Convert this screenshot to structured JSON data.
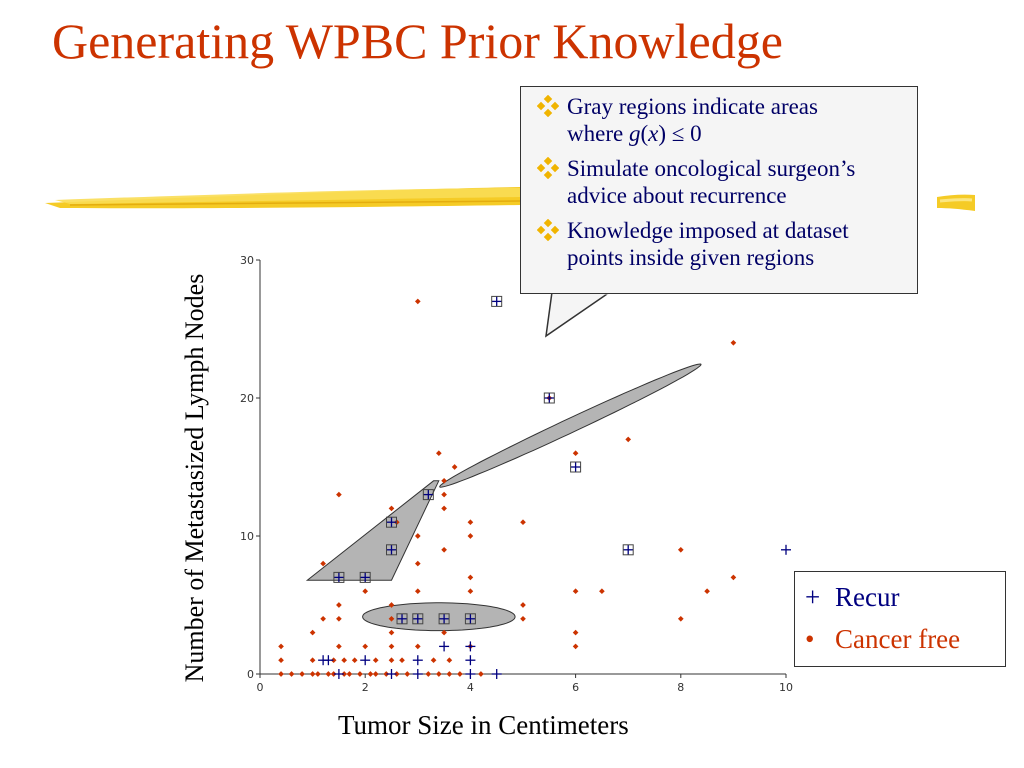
{
  "title": "Generating WPBC Prior Knowledge",
  "callout": {
    "bullets": [
      {
        "line1": "Gray regions indicate areas",
        "line2_prefix": "where ",
        "math_g": "g",
        "math_open": "(",
        "math_x": "x",
        "math_close": ")",
        "math_rel": " ≤ 0"
      },
      {
        "line1": "Simulate oncological surgeon’s",
        "line2": "advice about recurrence"
      },
      {
        "line1": "Knowledge imposed at dataset",
        "line2": "points inside given regions"
      }
    ]
  },
  "legend": {
    "recur_symbol": "+",
    "recur_label": "Recur",
    "free_symbol": "•",
    "free_label": "Cancer free"
  },
  "colors": {
    "title": "#cc3300",
    "recur": "#000080",
    "cancer_free": "#cc3300",
    "region_fill": "#b4b4b4",
    "bullet_icon": "#f0b400"
  },
  "chart_data": {
    "type": "scatter",
    "title": "",
    "xlabel": "Tumor Size in Centimeters",
    "ylabel": "Number of Metastasized Lymph Nodes",
    "xlim": [
      0,
      10
    ],
    "ylim": [
      0,
      30
    ],
    "x_ticks": [
      0,
      2,
      4,
      6,
      8,
      10
    ],
    "y_ticks": [
      0,
      10,
      20,
      30
    ],
    "grid": false,
    "legend_position": "lower-right-outside",
    "series": [
      {
        "name": "Recur",
        "points": [
          [
            1.2,
            1
          ],
          [
            2.0,
            1
          ],
          [
            3.0,
            1
          ],
          [
            3.5,
            2
          ],
          [
            4.0,
            1
          ],
          [
            4.0,
            2
          ],
          [
            4.5,
            0
          ],
          [
            1.5,
            0
          ],
          [
            2.5,
            0
          ],
          [
            3.0,
            0
          ],
          [
            4.0,
            0
          ],
          [
            1.3,
            1
          ],
          [
            10,
            9
          ],
          [
            2.5,
            11
          ],
          [
            2.5,
            9
          ],
          [
            3.2,
            13
          ],
          [
            1.5,
            7
          ],
          [
            2.0,
            7
          ],
          [
            2.7,
            4
          ],
          [
            3.0,
            4
          ],
          [
            3.5,
            4
          ],
          [
            4.0,
            4
          ],
          [
            4.5,
            27
          ],
          [
            5.5,
            20
          ],
          [
            6.0,
            15
          ],
          [
            7.0,
            9
          ]
        ]
      },
      {
        "name": "Cancer free",
        "points": [
          [
            0.4,
            0
          ],
          [
            0.6,
            0
          ],
          [
            0.8,
            0
          ],
          [
            1.0,
            0
          ],
          [
            1.1,
            0
          ],
          [
            1.3,
            0
          ],
          [
            1.4,
            0
          ],
          [
            1.6,
            0
          ],
          [
            1.7,
            0
          ],
          [
            1.9,
            0
          ],
          [
            2.1,
            0
          ],
          [
            2.2,
            0
          ],
          [
            2.4,
            0
          ],
          [
            2.6,
            0
          ],
          [
            2.8,
            0
          ],
          [
            3.2,
            0
          ],
          [
            3.4,
            0
          ],
          [
            3.6,
            0
          ],
          [
            3.8,
            0
          ],
          [
            4.2,
            0
          ],
          [
            0.4,
            1
          ],
          [
            1.0,
            1
          ],
          [
            1.4,
            1
          ],
          [
            1.6,
            1
          ],
          [
            1.8,
            1
          ],
          [
            2.2,
            1
          ],
          [
            2.5,
            1
          ],
          [
            2.7,
            1
          ],
          [
            3.3,
            1
          ],
          [
            3.6,
            1
          ],
          [
            0.4,
            2
          ],
          [
            1.5,
            2
          ],
          [
            2.0,
            2
          ],
          [
            2.5,
            2
          ],
          [
            3.0,
            2
          ],
          [
            4.0,
            2
          ],
          [
            6.0,
            2
          ],
          [
            1.0,
            3
          ],
          [
            2.5,
            3
          ],
          [
            3.5,
            3
          ],
          [
            6.0,
            3
          ],
          [
            1.2,
            4
          ],
          [
            1.5,
            4
          ],
          [
            2.5,
            4
          ],
          [
            8.0,
            4
          ],
          [
            1.5,
            5
          ],
          [
            2.5,
            5
          ],
          [
            5.0,
            5
          ],
          [
            2.0,
            6
          ],
          [
            3.0,
            6
          ],
          [
            4.0,
            6
          ],
          [
            5.0,
            4
          ],
          [
            6.0,
            6
          ],
          [
            6.5,
            6
          ],
          [
            8.5,
            6
          ],
          [
            1.2,
            8
          ],
          [
            3.0,
            8
          ],
          [
            4.0,
            7
          ],
          [
            9.0,
            7
          ],
          [
            8.0,
            9
          ],
          [
            3.5,
            9
          ],
          [
            3.0,
            10
          ],
          [
            4.0,
            10
          ],
          [
            4.0,
            11
          ],
          [
            5.0,
            11
          ],
          [
            2.5,
            12
          ],
          [
            3.5,
            13
          ],
          [
            1.5,
            13
          ],
          [
            3.5,
            14
          ],
          [
            3.7,
            15
          ],
          [
            3.4,
            16
          ],
          [
            5.5,
            20
          ],
          [
            7.0,
            17
          ],
          [
            3.0,
            27
          ],
          [
            9.0,
            24
          ],
          [
            6.0,
            16
          ],
          [
            3.5,
            12
          ],
          [
            2.6,
            11
          ]
        ]
      }
    ],
    "regions": [
      {
        "shape": "ellipse",
        "cx": 5.9,
        "cy": 18,
        "rx_along": 10.2,
        "ry_across": 0.55,
        "angle_deg": -61
      },
      {
        "shape": "polygon",
        "points": [
          [
            0.9,
            6.8
          ],
          [
            2.5,
            6.8
          ],
          [
            3.4,
            14
          ],
          [
            3.3,
            14
          ]
        ]
      },
      {
        "shape": "ellipse",
        "cx": 3.4,
        "cy": 4.15,
        "rx_along": 1.45,
        "ry_across": 0.28,
        "angle_deg": 0
      }
    ]
  }
}
